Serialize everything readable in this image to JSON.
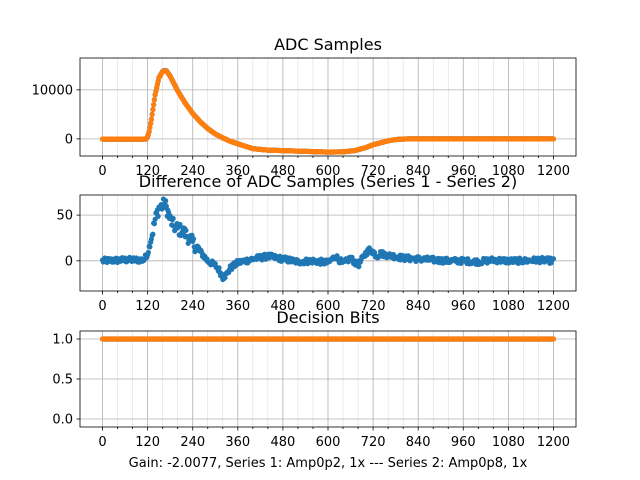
{
  "figure_label": "Gain: -2.0077, Series 1: Amp0p2, 1x --- Series 2: Amp0p8, 1x",
  "colors": {
    "series1": "#1f77b4",
    "series2": "#ff7f0e"
  },
  "x_ticks": [
    0,
    120,
    240,
    360,
    480,
    600,
    720,
    840,
    960,
    1080,
    1200
  ],
  "x_minor_step": 40,
  "chart_data": [
    {
      "type": "scatter",
      "title": "ADC Samples",
      "xlabel": "",
      "ylabel": "",
      "xlim": [
        -60,
        1260
      ],
      "ylim": [
        -3500,
        16500
      ],
      "yticks": [
        0,
        10000
      ],
      "series": [
        {
          "name": "Series 1",
          "x": [
            0,
            100,
            116,
            120,
            124,
            130,
            140,
            150,
            160,
            165,
            170,
            180,
            190,
            200,
            220,
            240,
            260,
            280,
            300,
            320,
            340,
            360,
            380,
            400,
            440,
            480,
            520,
            560,
            600,
            640,
            670,
            700,
            720,
            740,
            760,
            780,
            800,
            820,
            840,
            960,
            1080,
            1200
          ],
          "values": [
            -50,
            -60,
            -40,
            500,
            1500,
            4000,
            9000,
            12500,
            13800,
            14000,
            13900,
            12800,
            11300,
            9800,
            7300,
            5200,
            3500,
            2100,
            1000,
            200,
            -500,
            -1000,
            -1500,
            -2000,
            -2300,
            -2400,
            -2500,
            -2600,
            -2700,
            -2650,
            -2400,
            -1800,
            -1200,
            -800,
            -400,
            -150,
            -30,
            0,
            0,
            0,
            0,
            0
          ]
        },
        {
          "name": "Series 2",
          "x": [
            0,
            100,
            116,
            120,
            124,
            130,
            140,
            150,
            160,
            165,
            170,
            180,
            190,
            200,
            220,
            240,
            260,
            280,
            300,
            320,
            340,
            360,
            380,
            400,
            440,
            480,
            520,
            560,
            600,
            640,
            670,
            700,
            720,
            740,
            760,
            780,
            800,
            820,
            840,
            960,
            1080,
            1200
          ],
          "values": [
            -50,
            -60,
            -40,
            480,
            1470,
            3960,
            8950,
            12440,
            13740,
            13940,
            13850,
            12760,
            11260,
            9765,
            7275,
            5180,
            3490,
            2100,
            1005,
            210,
            -495,
            -998,
            -1498,
            -1998,
            -2298,
            -2398,
            -2498,
            -2598,
            -2698,
            -2648,
            -2398,
            -1798,
            -1200,
            -800,
            -400,
            -150,
            -30,
            0,
            0,
            0,
            0,
            0
          ]
        }
      ]
    },
    {
      "type": "scatter",
      "title": "Difference of ADC Samples (Series 1 - Series 2)",
      "xlabel": "",
      "ylabel": "",
      "xlim": [
        -60,
        1260
      ],
      "ylim": [
        -33,
        72
      ],
      "yticks": [
        0,
        50
      ],
      "series": [
        {
          "name": "Series 1 - Series 2",
          "x": [
            0,
            60,
            110,
            120,
            130,
            140,
            150,
            160,
            165,
            170,
            175,
            180,
            190,
            200,
            210,
            220,
            230,
            240,
            260,
            280,
            300,
            310,
            320,
            330,
            340,
            360,
            400,
            440,
            480,
            520,
            560,
            600,
            620,
            640,
            660,
            680,
            700,
            710,
            720,
            730,
            740,
            760,
            780,
            800,
            840,
            880,
            920,
            960,
            1000,
            1040,
            1080,
            1120,
            1160,
            1200
          ],
          "values": [
            0,
            1,
            1,
            8,
            25,
            45,
            58,
            60,
            63,
            58,
            52,
            45,
            38,
            35,
            33,
            30,
            25,
            20,
            10,
            0,
            -5,
            -10,
            -18,
            -15,
            -8,
            -2,
            2,
            5,
            2,
            -1,
            0,
            -2,
            5,
            -3,
            3,
            -5,
            8,
            12,
            10,
            5,
            8,
            6,
            5,
            3,
            2,
            1,
            0,
            0,
            -1,
            1,
            0,
            0,
            1,
            0
          ]
        }
      ]
    },
    {
      "type": "scatter",
      "title": "Decision Bits",
      "xlabel": "Gain: -2.0077, Series 1: Amp0p2, 1x --- Series 2: Amp0p8, 1x",
      "ylabel": "",
      "xlim": [
        -60,
        1260
      ],
      "ylim": [
        -0.1,
        1.1
      ],
      "yticks": [
        0.0,
        0.5,
        1.0
      ],
      "series": [
        {
          "name": "Series 1",
          "x": [
            0,
            1200
          ],
          "values": [
            1,
            1
          ]
        },
        {
          "name": "Series 2",
          "x": [
            0,
            1200
          ],
          "values": [
            1,
            1
          ]
        }
      ]
    }
  ]
}
